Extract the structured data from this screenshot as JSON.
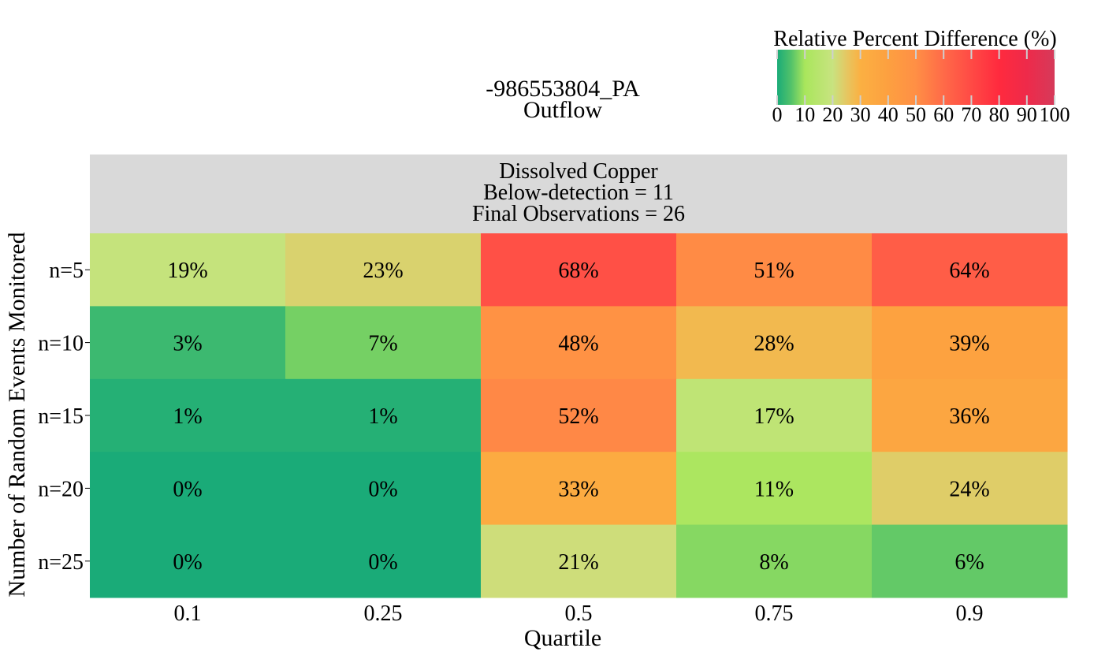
{
  "chart_data": {
    "type": "heatmap",
    "title": "-986553804_PA",
    "subtitle": "Outflow",
    "panel_header": [
      "Dissolved Copper",
      "Below-detection = 11",
      "Final Observations = 26"
    ],
    "xlabel": "Quartile",
    "ylabel": "Number of Random Events Monitored",
    "x_categories": [
      "0.1",
      "0.25",
      "0.5",
      "0.75",
      "0.9"
    ],
    "y_categories": [
      "n=5",
      "n=10",
      "n=15",
      "n=20",
      "n=25"
    ],
    "values": [
      [
        19,
        23,
        68,
        51,
        64
      ],
      [
        3,
        7,
        48,
        28,
        39
      ],
      [
        1,
        1,
        52,
        17,
        36
      ],
      [
        0,
        0,
        33,
        11,
        24
      ],
      [
        0,
        0,
        21,
        8,
        6
      ]
    ],
    "value_format": "{v}%",
    "colorbar": {
      "title": "Relative Percent Difference (%)",
      "range": [
        0,
        100
      ],
      "ticks": [
        0,
        10,
        20,
        30,
        40,
        50,
        60,
        70,
        80,
        90,
        100
      ],
      "placement": "top-right",
      "colors": [
        {
          "v": 0,
          "c": "#1aab78"
        },
        {
          "v": 5,
          "c": "#52c26a"
        },
        {
          "v": 10,
          "c": "#a9e65c"
        },
        {
          "v": 20,
          "c": "#c8e380"
        },
        {
          "v": 25,
          "c": "#e5c762"
        },
        {
          "v": 30,
          "c": "#fbb042"
        },
        {
          "v": 40,
          "c": "#fda040"
        },
        {
          "v": 50,
          "c": "#ff8f45"
        },
        {
          "v": 60,
          "c": "#ff6a48"
        },
        {
          "v": 70,
          "c": "#ff4a45"
        },
        {
          "v": 80,
          "c": "#ff2a3e"
        },
        {
          "v": 90,
          "c": "#ee2a4a"
        },
        {
          "v": 100,
          "c": "#d63a5a"
        }
      ]
    }
  }
}
